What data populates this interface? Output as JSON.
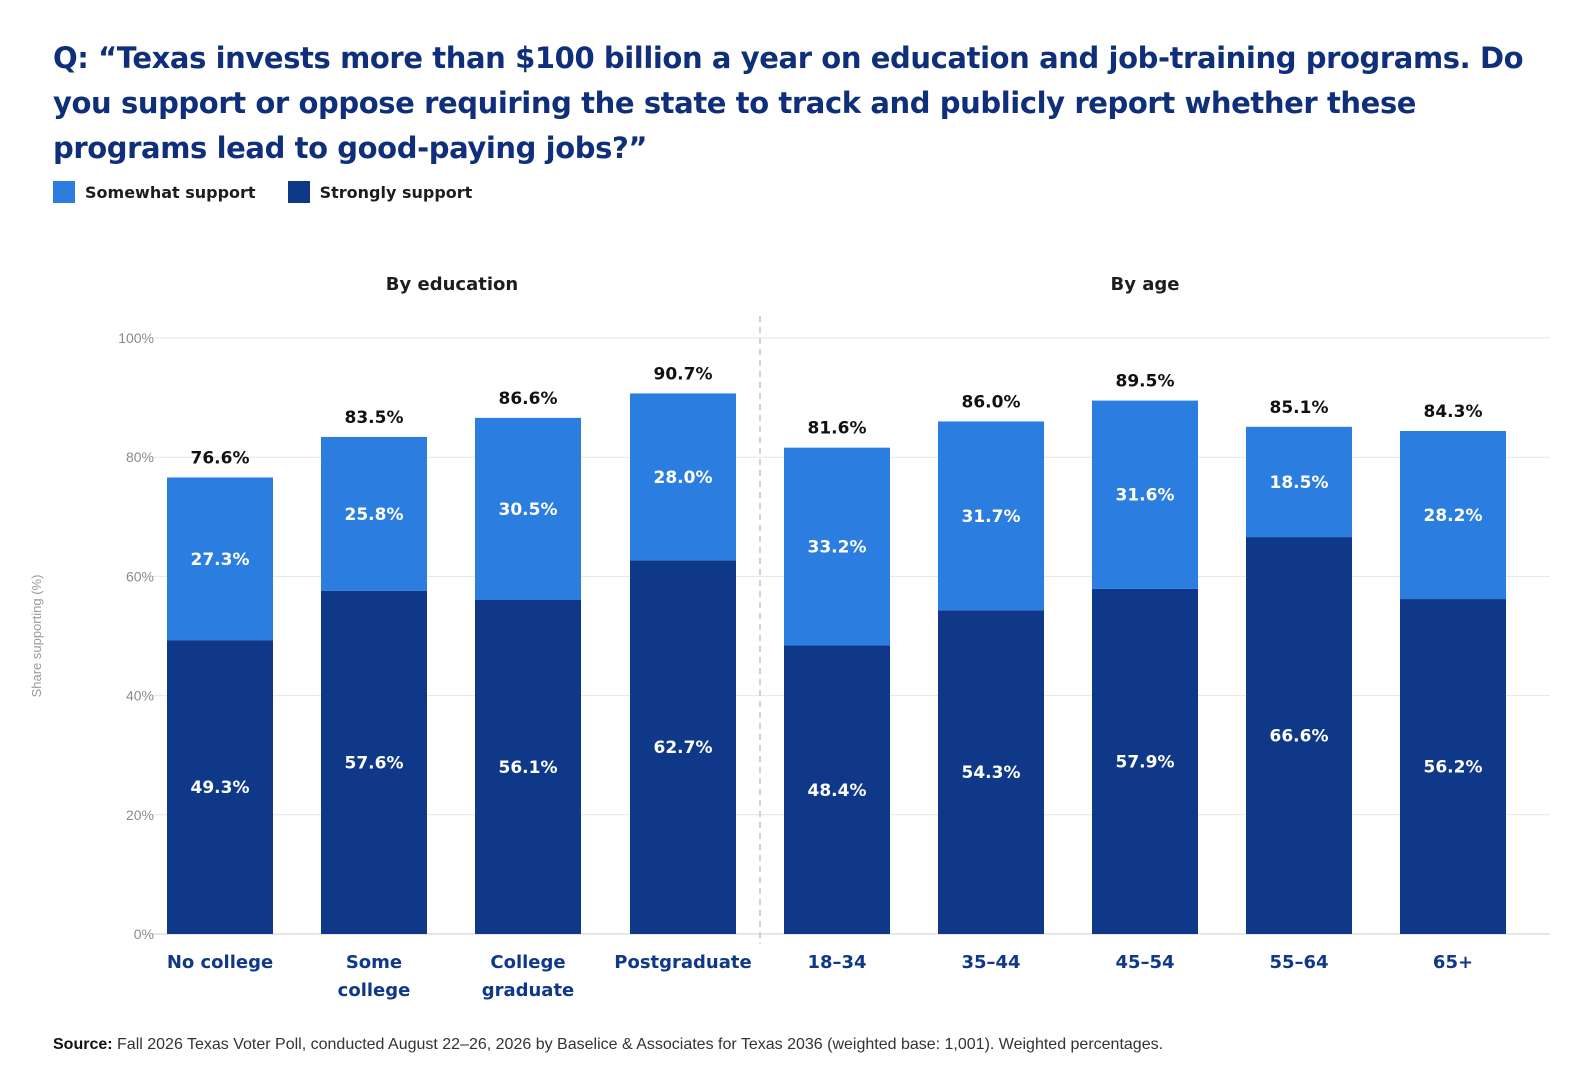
{
  "title": "Q: “Texas invests more than $100 billion a year on education and job-training programs. Do you support or oppose requiring the state to track and publicly report whether these programs lead to good-paying jobs?”",
  "legend": {
    "somewhat": "Somewhat support",
    "strongly": "Strongly support"
  },
  "colors": {
    "somewhat": "#2b7de0",
    "strongly": "#0f3888",
    "title": "#0f2f7a",
    "category_label": "#0f3888"
  },
  "source": {
    "label": "Source:",
    "text": " Fall 2026 Texas Voter Poll, conducted August 22–26, 2026 by Baselice & Associates for Texas 2036 (weighted base: 1,001). Weighted percentages."
  },
  "chart_data": {
    "type": "bar",
    "stacked": true,
    "ylabel": "Share supporting (%)",
    "ylim": [
      0,
      100
    ],
    "yticks": [
      0,
      20,
      40,
      60,
      80,
      100
    ],
    "ytick_labels": [
      "0%",
      "20%",
      "40%",
      "60%",
      "80%",
      "100%"
    ],
    "grid": true,
    "legend_position": "top-left",
    "groups": [
      {
        "label": "By education",
        "categories": [
          "No college",
          "Some college",
          "College graduate",
          "Postgraduate"
        ]
      },
      {
        "label": "By age",
        "categories": [
          "18–34",
          "35–44",
          "45–54",
          "55–64",
          "65+"
        ]
      }
    ],
    "categories": [
      "No college",
      "Some college",
      "College graduate",
      "Postgraduate",
      "18–34",
      "35–44",
      "45–54",
      "55–64",
      "65+"
    ],
    "category_lines": [
      [
        "No college"
      ],
      [
        "Some",
        "college"
      ],
      [
        "College",
        "graduate"
      ],
      [
        "Postgraduate"
      ],
      [
        "18–34"
      ],
      [
        "35–44"
      ],
      [
        "45–54"
      ],
      [
        "55–64"
      ],
      [
        "65+"
      ]
    ],
    "series": [
      {
        "name": "Strongly support",
        "values": [
          49.3,
          57.6,
          56.1,
          62.7,
          48.4,
          54.3,
          57.9,
          66.6,
          56.2
        ]
      },
      {
        "name": "Somewhat support",
        "values": [
          27.3,
          25.8,
          30.5,
          28.0,
          33.2,
          31.7,
          31.6,
          18.5,
          28.2
        ]
      }
    ],
    "totals": [
      76.6,
      83.5,
      86.6,
      90.7,
      81.6,
      86.0,
      89.5,
      85.1,
      84.3
    ],
    "value_labels": {
      "strongly": [
        "49.3%",
        "57.6%",
        "56.1%",
        "62.7%",
        "48.4%",
        "54.3%",
        "57.9%",
        "66.6%",
        "56.2%"
      ],
      "somewhat": [
        "27.3%",
        "25.8%",
        "30.5%",
        "28.0%",
        "33.2%",
        "31.7%",
        "31.6%",
        "18.5%",
        "28.2%"
      ],
      "totals": [
        "76.6%",
        "83.5%",
        "86.6%",
        "90.7%",
        "81.6%",
        "86.0%",
        "89.5%",
        "85.1%",
        "84.3%"
      ]
    }
  }
}
